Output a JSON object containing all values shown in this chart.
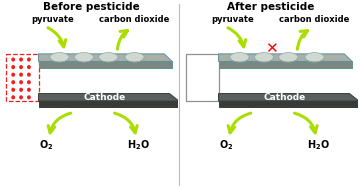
{
  "title_left": "Before pesticide",
  "title_right": "After pesticide",
  "label_pyruvate": "pyruvate",
  "label_co2": "carbon dioxide",
  "label_cathode": "Cathode",
  "bg_color": "#ffffff",
  "arrow_color": "#aadd00",
  "dot_color": "#ee2020",
  "divider_color": "#bbbbbb",
  "plate_face": "#a8b0a8",
  "plate_edge": "#6090a0",
  "plate_side": "#7a8880",
  "cathode_face": "#5a6060",
  "cathode_side": "#383c38",
  "cathode_text": "#ffffff",
  "dome_face": "#d0d8d0",
  "dome_edge": "#8aaab0",
  "wire_color": "#909090"
}
